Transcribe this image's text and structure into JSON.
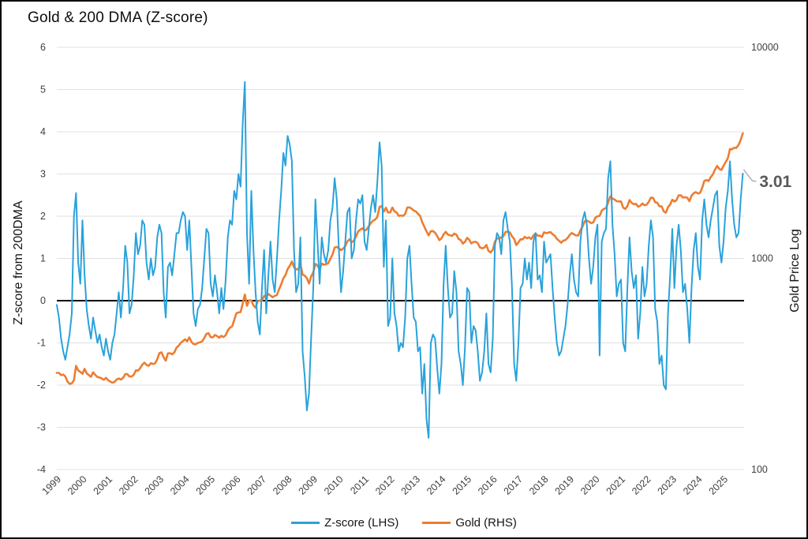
{
  "title": "Gold & 200 DMA (Z-score)",
  "legend": {
    "items": [
      {
        "label": "Z-score (LHS)",
        "color": "#29A2DB"
      },
      {
        "label": "Gold (RHS)",
        "color": "#ED7D31"
      }
    ]
  },
  "colors": {
    "zscore_line": "#29A2DB",
    "gold_line": "#ED7D31",
    "zero_line": "#000000",
    "gridline": "#E0E0E0",
    "tick_text": "#404040",
    "annotation_text": "#595959",
    "annotation_leader": "#AFAFAF",
    "background": "#FFFFFF"
  },
  "chart_data": {
    "type": "line",
    "title": "Gold & 200 DMA (Z-score)",
    "x_start_year": 1999.0,
    "x_step_years": 0.0833333,
    "x_tick_labels": [
      "1999",
      "2000",
      "2001",
      "2002",
      "2003",
      "2004",
      "2005",
      "2006",
      "2007",
      "2008",
      "2009",
      "2010",
      "2011",
      "2012",
      "2013",
      "2014",
      "2015",
      "2016",
      "2017",
      "2018",
      "2019",
      "2020",
      "2021",
      "2022",
      "2023",
      "2024",
      "2025"
    ],
    "left_axis": {
      "label": "Z-score from 200DMA",
      "min": -4,
      "max": 6,
      "ticks": [
        6,
        5,
        4,
        3,
        2,
        1,
        0,
        -1,
        -2,
        -3,
        -4
      ],
      "zero_line": true
    },
    "right_axis": {
      "label": "Gold Price Log",
      "scale": "log10",
      "min": 100,
      "max": 10000,
      "ticks": [
        10000,
        1000,
        100
      ]
    },
    "grid": true,
    "legend_position": "bottom",
    "annotation": {
      "text": "3.01",
      "series": "Z-score (LHS)",
      "attach": "last-point"
    },
    "series": [
      {
        "name": "Z-score (LHS)",
        "axis": "left",
        "color": "#29A2DB",
        "values": [
          -0.1,
          -0.4,
          -0.9,
          -1.2,
          -1.4,
          -1.1,
          -0.8,
          -0.3,
          2.0,
          2.55,
          0.9,
          0.4,
          1.9,
          0.6,
          -0.2,
          -0.6,
          -0.9,
          -0.4,
          -0.7,
          -1.0,
          -0.8,
          -1.1,
          -1.3,
          -0.9,
          -1.2,
          -1.4,
          -1.0,
          -0.8,
          -0.3,
          0.2,
          -0.4,
          0.3,
          1.3,
          0.9,
          -0.3,
          -0.1,
          0.6,
          1.6,
          1.1,
          1.3,
          1.9,
          1.8,
          0.9,
          0.5,
          1.0,
          0.6,
          0.8,
          1.5,
          1.8,
          1.6,
          0.2,
          -0.4,
          0.8,
          0.9,
          0.6,
          1.1,
          1.6,
          1.6,
          1.9,
          2.1,
          2.0,
          1.2,
          1.9,
          0.8,
          -0.3,
          -0.6,
          -0.2,
          -0.1,
          0.3,
          1.0,
          1.7,
          1.6,
          0.4,
          0.1,
          0.6,
          0.2,
          -0.3,
          0.3,
          -0.2,
          0.5,
          1.5,
          1.9,
          1.8,
          2.6,
          2.4,
          3.0,
          2.7,
          4.2,
          5.18,
          1.6,
          0.4,
          2.6,
          1.2,
          0.2,
          -0.5,
          -0.8,
          0.3,
          1.2,
          -0.3,
          0.6,
          1.4,
          0.5,
          0.2,
          1.0,
          1.9,
          2.6,
          3.5,
          3.2,
          3.9,
          3.7,
          3.3,
          1.2,
          0.2,
          0.4,
          1.5,
          -1.2,
          -1.8,
          -2.6,
          -2.2,
          -0.9,
          0.3,
          2.4,
          1.4,
          0.4,
          1.5,
          1.1,
          0.9,
          1.2,
          1.9,
          2.2,
          2.9,
          2.4,
          1.2,
          0.2,
          0.7,
          1.4,
          2.1,
          2.2,
          1.0,
          1.2,
          1.9,
          2.4,
          2.3,
          2.5,
          1.4,
          1.2,
          1.7,
          2.2,
          2.5,
          2.1,
          2.8,
          3.75,
          3.2,
          0.8,
          1.9,
          -0.6,
          -0.4,
          1.0,
          -0.3,
          -0.6,
          -1.2,
          -1.0,
          -1.1,
          -0.4,
          1.0,
          1.3,
          0.4,
          -0.4,
          -0.5,
          -1.2,
          -1.1,
          -2.2,
          -1.5,
          -2.8,
          -3.25,
          -1.0,
          -0.8,
          -0.9,
          -1.6,
          -2.2,
          -1.5,
          0.4,
          1.3,
          0.3,
          -0.4,
          -0.3,
          0.7,
          0.2,
          -1.2,
          -1.5,
          -2.0,
          -1.1,
          0.3,
          0.2,
          -1.0,
          -0.6,
          -0.7,
          -1.2,
          -1.9,
          -1.7,
          -1.2,
          -0.3,
          -1.5,
          -1.7,
          -0.9,
          1.3,
          1.6,
          1.5,
          1.1,
          1.9,
          2.1,
          1.7,
          1.4,
          0.3,
          -1.5,
          -1.9,
          -1.0,
          0.3,
          0.4,
          1.0,
          0.5,
          0.9,
          0.3,
          1.4,
          1.6,
          0.5,
          0.6,
          0.2,
          1.4,
          0.9,
          1.0,
          1.1,
          0.3,
          -0.4,
          -1.0,
          -1.3,
          -1.2,
          -0.9,
          -0.6,
          -0.1,
          0.6,
          1.1,
          0.5,
          0.2,
          0.1,
          1.4,
          1.9,
          2.1,
          1.8,
          1.0,
          0.4,
          0.8,
          1.5,
          1.8,
          -1.3,
          1.4,
          1.6,
          1.7,
          2.9,
          3.3,
          1.8,
          1.1,
          0.1,
          0.4,
          0.5,
          -1.0,
          -1.2,
          0.3,
          1.5,
          0.7,
          0.3,
          0.6,
          -0.9,
          -0.3,
          0.8,
          0.1,
          0.4,
          1.3,
          1.9,
          1.5,
          -0.2,
          -0.5,
          -1.5,
          -1.3,
          -2.0,
          -2.1,
          -0.3,
          0.6,
          1.7,
          0.3,
          1.3,
          1.8,
          1.2,
          0.2,
          0.4,
          -0.2,
          -1.0,
          0.3,
          1.2,
          1.6,
          0.8,
          0.5,
          1.9,
          2.4,
          1.8,
          1.5,
          1.9,
          2.2,
          2.5,
          2.6,
          1.3,
          0.9,
          1.4,
          2.2,
          2.6,
          3.3,
          2.4,
          1.8,
          1.5,
          1.6,
          2.4,
          3.01
        ]
      },
      {
        "name": "Gold (RHS)",
        "axis": "right",
        "color": "#ED7D31",
        "values": [
          287,
          287,
          280,
          282,
          276,
          261,
          255,
          256,
          265,
          310,
          295,
          290,
          284,
          300,
          286,
          280,
          275,
          289,
          281,
          274,
          273,
          270,
          266,
          272,
          265,
          261,
          258,
          260,
          267,
          270,
          267,
          272,
          283,
          283,
          276,
          276,
          281,
          295,
          294,
          302,
          314,
          321,
          313,
          310,
          319,
          316,
          319,
          333,
          356,
          359,
          340,
          328,
          355,
          356,
          351,
          359,
          378,
          386,
          398,
          406,
          414,
          405,
          423,
          403,
          393,
          392,
          398,
          400,
          405,
          420,
          439,
          442,
          424,
          423,
          434,
          429,
          421,
          430,
          424,
          433,
          456,
          470,
          476,
          510,
          550,
          555,
          557,
          611,
          675,
          596,
          633,
          632,
          599,
          585,
          627,
          632,
          631,
          665,
          655,
          679,
          667,
          655,
          665,
          672,
          715,
          754,
          806,
          834,
          890,
          922,
          968,
          909,
          888,
          889,
          940,
          839,
          829,
          807,
          760,
          822,
          858,
          943,
          924,
          890,
          945,
          934,
          939,
          949,
          996,
          1043,
          1127,
          1134,
          1118,
          1095,
          1113,
          1148,
          1205,
          1233,
          1193,
          1215,
          1271,
          1342,
          1369,
          1391,
          1356,
          1372,
          1423,
          1473,
          1510,
          1528,
          1572,
          1755,
          1771,
          1666,
          1739,
          1652,
          1652,
          1742,
          1673,
          1650,
          1590,
          1598,
          1590,
          1625,
          1744,
          1746,
          1721,
          1688,
          1671,
          1627,
          1593,
          1485,
          1414,
          1343,
          1286,
          1347,
          1348,
          1324,
          1276,
          1221,
          1244,
          1300,
          1336,
          1298,
          1288,
          1279,
          1311,
          1296,
          1237,
          1222,
          1176,
          1199,
          1251,
          1227,
          1178,
          1198,
          1199,
          1181,
          1128,
          1117,
          1124,
          1159,
          1086,
          1068,
          1097,
          1199,
          1246,
          1242,
          1260,
          1276,
          1337,
          1340,
          1327,
          1272,
          1238,
          1157,
          1192,
          1234,
          1231,
          1266,
          1246,
          1260,
          1236,
          1283,
          1315,
          1280,
          1282,
          1264,
          1331,
          1318,
          1325,
          1334,
          1303,
          1281,
          1238,
          1213,
          1187,
          1215,
          1222,
          1250,
          1292,
          1320,
          1300,
          1286,
          1284,
          1359,
          1413,
          1500,
          1511,
          1495,
          1471,
          1479,
          1561,
          1585,
          1591,
          1683,
          1716,
          1732,
          1843,
          1969,
          1922,
          1900,
          1866,
          1864,
          1863,
          1742,
          1715,
          1768,
          1890,
          1835,
          1807,
          1814,
          1757,
          1777,
          1820,
          1787,
          1797,
          1856,
          1942,
          1937,
          1848,
          1837,
          1765,
          1766,
          1671,
          1648,
          1750,
          1800,
          1898,
          1860,
          1890,
          1990,
          1992,
          1942,
          1951,
          1940,
          1866,
          1983,
          2036,
          2062,
          2030,
          2044,
          2160,
          2330,
          2351,
          2327,
          2426,
          2503,
          2635,
          2744,
          2657,
          2625,
          2750,
          2860,
          2985,
          3300,
          3290,
          3350,
          3340,
          3450,
          3650,
          3917
        ]
      }
    ]
  }
}
